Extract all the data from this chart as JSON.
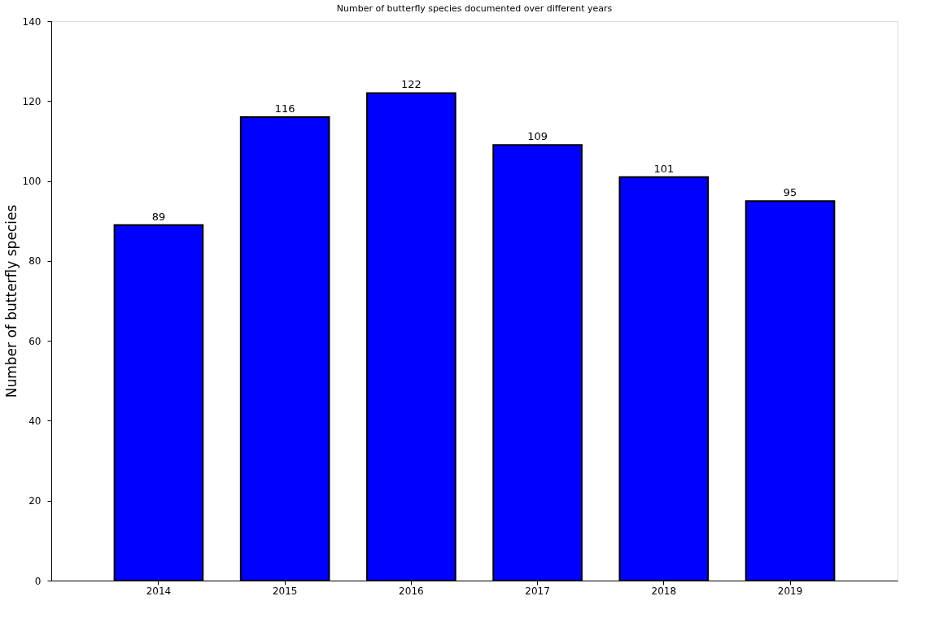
{
  "chart_data": {
    "type": "bar",
    "title": "Number of butterfly species documented over different years",
    "ylabel": "Number of butterfly species",
    "categories": [
      "2014",
      "2015",
      "2016",
      "2017",
      "2018",
      "2019"
    ],
    "values": [
      89,
      116,
      122,
      109,
      101,
      95
    ],
    "color": "#0000ff",
    "ylim": [
      0,
      140
    ],
    "yticks": [
      0,
      20,
      40,
      60,
      80,
      100,
      120,
      140
    ],
    "grid": false,
    "data_labels": true
  }
}
